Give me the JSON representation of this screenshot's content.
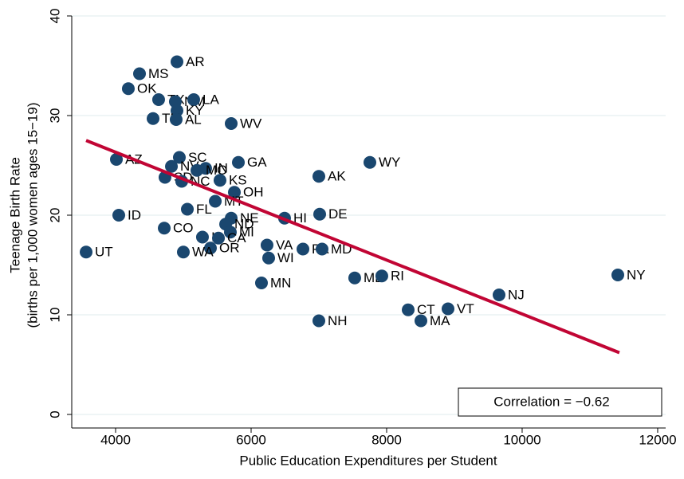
{
  "chart_data": {
    "type": "scatter",
    "x_label": "Public Education Expenditures per Student",
    "y_label": [
      "Teenage Birth Rate",
      "(births per 1,000 women ages 15−19)"
    ],
    "annotation": "Correlation = −0.62",
    "labels": [
      "UT",
      "AR",
      "MS",
      "OK",
      "TX",
      "NM",
      "LA",
      "KY",
      "TN",
      "AL",
      "WV",
      "AZ",
      "SC",
      "GA",
      "WY",
      "NV",
      "IN",
      "MO",
      "AK",
      "SD",
      "NC",
      "KS",
      "OH",
      "MT",
      "ID",
      "FL",
      "DE",
      "HI",
      "NE",
      "ND",
      "CO",
      "MI",
      "IA",
      "CA",
      "VA",
      "PA",
      "MD",
      "OR",
      "WA",
      "WI",
      "MN",
      "ME",
      "RI",
      "NY",
      "NJ",
      "NH",
      "CT",
      "VT",
      "MA"
    ],
    "x": [
      3565,
      4906,
      4353,
      4188,
      4635,
      4882,
      5153,
      4906,
      4553,
      4894,
      5706,
      4012,
      4941,
      5812,
      7753,
      4824,
      5329,
      5200,
      7000,
      4729,
      4976,
      5541,
      5753,
      5471,
      4047,
      5059,
      7012,
      6494,
      5706,
      5624,
      4718,
      5694,
      5282,
      5518,
      6235,
      6765,
      7047,
      5400,
      5000,
      6259,
      6153,
      7529,
      7929,
      11412,
      9659,
      7000,
      8318,
      8906,
      8506
    ],
    "y": [
      16.3,
      35.4,
      34.2,
      32.7,
      31.6,
      31.4,
      31.6,
      30.5,
      29.7,
      29.6,
      29.2,
      25.6,
      25.8,
      25.3,
      25.3,
      24.9,
      24.7,
      24.5,
      23.9,
      23.8,
      23.4,
      23.5,
      22.3,
      21.4,
      20.0,
      20.6,
      20.1,
      19.7,
      19.7,
      19.1,
      18.7,
      18.3,
      17.8,
      17.7,
      17.0,
      16.6,
      16.6,
      16.7,
      16.3,
      15.7,
      13.2,
      13.7,
      13.9,
      14.0,
      12.0,
      9.4,
      10.5,
      10.6,
      9.4
    ],
    "color": "#1a476f",
    "fit": {
      "x": [
        3565,
        11435
      ],
      "y": [
        27.5,
        6.2
      ],
      "color": "#c10534"
    },
    "xlim": [
      3353,
      12118
    ],
    "xticks": [
      4000,
      6000,
      8000,
      10000,
      12000
    ],
    "ylim": [
      -1.36,
      40
    ],
    "yticks": [
      0,
      10,
      20,
      30,
      40
    ],
    "grid": true
  }
}
